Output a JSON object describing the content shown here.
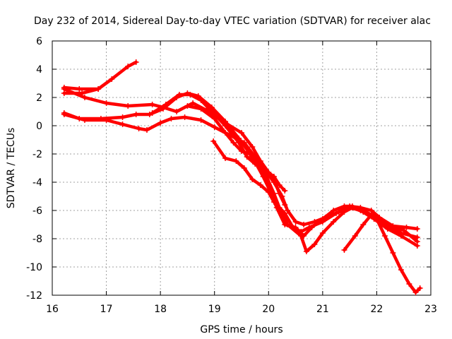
{
  "chart_data": {
    "type": "line",
    "title": "Day 232 of 2014, Sidereal Day-to-day VTEC variation (SDTVAR) for receiver alac",
    "xlabel": "GPS time / hours",
    "ylabel": "SDTVAR / TECUs",
    "xlim": [
      16,
      23
    ],
    "ylim": [
      -12,
      6
    ],
    "xticks": [
      16,
      17,
      18,
      19,
      20,
      21,
      22,
      23
    ],
    "yticks": [
      -12,
      -10,
      -8,
      -6,
      -4,
      -2,
      0,
      2,
      4,
      6
    ],
    "grid": true,
    "color": "#ff0000",
    "marker": "cross",
    "series": [
      {
        "name": "s1",
        "points": [
          [
            16.22,
            2.3
          ],
          [
            16.55,
            2.3
          ],
          [
            16.85,
            2.6
          ],
          [
            17.1,
            3.3
          ],
          [
            17.4,
            4.2
          ],
          [
            17.55,
            4.5
          ]
        ]
      },
      {
        "name": "s2",
        "points": [
          [
            16.22,
            2.7
          ],
          [
            16.5,
            2.6
          ],
          [
            16.85,
            2.6
          ]
        ]
      },
      {
        "name": "s3",
        "points": [
          [
            16.22,
            2.6
          ],
          [
            16.6,
            2.0
          ],
          [
            17.0,
            1.6
          ],
          [
            17.4,
            1.4
          ],
          [
            17.85,
            1.5
          ],
          [
            18.05,
            1.3
          ],
          [
            18.3,
            1.0
          ],
          [
            18.6,
            1.6
          ],
          [
            18.85,
            1.1
          ],
          [
            19.2,
            0.2
          ],
          [
            19.5,
            -0.5
          ],
          [
            19.7,
            -1.5
          ],
          [
            19.85,
            -2.5
          ],
          [
            20.0,
            -3.3
          ],
          [
            20.1,
            -3.8
          ],
          [
            20.2,
            -4.8
          ],
          [
            20.3,
            -5.6
          ]
        ]
      },
      {
        "name": "s4",
        "points": [
          [
            16.22,
            0.9
          ],
          [
            16.5,
            0.5
          ],
          [
            16.9,
            0.5
          ],
          [
            17.3,
            0.6
          ],
          [
            17.55,
            0.8
          ],
          [
            17.8,
            0.8
          ],
          [
            18.05,
            1.2
          ],
          [
            18.3,
            2.0
          ],
          [
            18.5,
            2.3
          ],
          [
            18.7,
            2.1
          ],
          [
            18.95,
            1.3
          ],
          [
            19.2,
            0.3
          ],
          [
            19.45,
            -0.9
          ],
          [
            19.7,
            -2.2
          ],
          [
            19.9,
            -3.6
          ],
          [
            20.05,
            -4.8
          ],
          [
            20.15,
            -5.8
          ],
          [
            20.3,
            -7.0
          ],
          [
            20.5,
            -7.2
          ],
          [
            20.65,
            -7.8
          ],
          [
            20.8,
            -7.2
          ],
          [
            21.0,
            -6.6
          ],
          [
            21.2,
            -6.0
          ],
          [
            21.4,
            -5.7
          ],
          [
            21.55,
            -5.7
          ],
          [
            21.75,
            -6.0
          ],
          [
            21.95,
            -6.4
          ],
          [
            22.2,
            -7.1
          ],
          [
            22.5,
            -7.4
          ],
          [
            22.75,
            -8.2
          ]
        ]
      },
      {
        "name": "s5",
        "points": [
          [
            16.22,
            0.8
          ],
          [
            16.6,
            0.4
          ],
          [
            17.0,
            0.4
          ],
          [
            17.3,
            0.1
          ],
          [
            17.6,
            -0.2
          ],
          [
            17.75,
            -0.3
          ],
          [
            18.0,
            0.2
          ],
          [
            18.2,
            0.5
          ],
          [
            18.45,
            0.6
          ],
          [
            18.75,
            0.4
          ],
          [
            19.0,
            -0.1
          ],
          [
            19.3,
            -0.7
          ],
          [
            19.55,
            -1.2
          ],
          [
            19.75,
            -2.2
          ],
          [
            19.95,
            -3.5
          ],
          [
            20.1,
            -4.8
          ],
          [
            20.2,
            -5.8
          ],
          [
            20.35,
            -7.0
          ],
          [
            20.6,
            -7.8
          ],
          [
            20.7,
            -8.9
          ],
          [
            20.85,
            -8.4
          ],
          [
            21.0,
            -7.6
          ],
          [
            21.2,
            -6.8
          ],
          [
            21.4,
            -6.1
          ],
          [
            21.55,
            -5.8
          ],
          [
            21.75,
            -6.1
          ],
          [
            21.95,
            -6.4
          ],
          [
            22.2,
            -7.1
          ],
          [
            22.45,
            -7.6
          ],
          [
            22.75,
            -7.9
          ]
        ]
      },
      {
        "name": "s6",
        "points": [
          [
            17.85,
            0.9
          ],
          [
            18.1,
            1.5
          ],
          [
            18.35,
            2.2
          ],
          [
            18.55,
            2.2
          ],
          [
            18.75,
            1.8
          ],
          [
            18.95,
            1.0
          ],
          [
            19.2,
            0.0
          ],
          [
            19.45,
            -1.2
          ],
          [
            19.6,
            -2.2
          ],
          [
            19.75,
            -2.7
          ],
          [
            19.9,
            -3.0
          ],
          [
            20.1,
            -4.0
          ],
          [
            20.25,
            -5.0
          ],
          [
            20.35,
            -6.0
          ],
          [
            20.5,
            -6.8
          ],
          [
            20.65,
            -7.0
          ],
          [
            20.85,
            -6.8
          ],
          [
            21.05,
            -6.5
          ],
          [
            21.3,
            -6.1
          ],
          [
            21.5,
            -5.7
          ],
          [
            21.7,
            -5.8
          ],
          [
            21.9,
            -6.0
          ],
          [
            22.05,
            -6.5
          ],
          [
            22.3,
            -7.1
          ],
          [
            22.55,
            -7.2
          ],
          [
            22.75,
            -7.3
          ]
        ]
      },
      {
        "name": "s7",
        "points": [
          [
            18.5,
            1.4
          ],
          [
            18.75,
            1.2
          ],
          [
            19.0,
            0.5
          ],
          [
            19.2,
            -0.5
          ],
          [
            19.35,
            -1.2
          ],
          [
            19.5,
            -1.8
          ],
          [
            19.65,
            -2.0
          ],
          [
            19.8,
            -2.8
          ],
          [
            19.95,
            -3.2
          ],
          [
            20.1,
            -3.6
          ],
          [
            20.2,
            -4.2
          ],
          [
            20.3,
            -4.6
          ]
        ]
      },
      {
        "name": "s8",
        "points": [
          [
            18.98,
            -1.1
          ],
          [
            19.2,
            -2.3
          ],
          [
            19.4,
            -2.5
          ],
          [
            19.55,
            -3.0
          ],
          [
            19.7,
            -3.8
          ],
          [
            19.85,
            -4.2
          ],
          [
            20.0,
            -4.7
          ],
          [
            20.1,
            -5.4
          ],
          [
            20.3,
            -6.2
          ],
          [
            20.45,
            -7.2
          ],
          [
            20.6,
            -7.5
          ],
          [
            20.75,
            -7.2
          ],
          [
            21.0,
            -6.8
          ],
          [
            21.25,
            -6.2
          ],
          [
            21.5,
            -5.8
          ],
          [
            21.7,
            -6.0
          ],
          [
            21.95,
            -6.6
          ],
          [
            22.2,
            -7.3
          ],
          [
            22.45,
            -7.8
          ],
          [
            22.75,
            -8.5
          ]
        ]
      },
      {
        "name": "s9",
        "points": [
          [
            21.4,
            -8.8
          ],
          [
            21.6,
            -7.8
          ],
          [
            21.75,
            -7.0
          ],
          [
            21.9,
            -6.3
          ],
          [
            22.0,
            -6.6
          ],
          [
            22.15,
            -7.8
          ],
          [
            22.3,
            -9.0
          ],
          [
            22.45,
            -10.2
          ],
          [
            22.6,
            -11.2
          ],
          [
            22.72,
            -11.8
          ],
          [
            22.8,
            -11.5
          ]
        ]
      }
    ]
  }
}
